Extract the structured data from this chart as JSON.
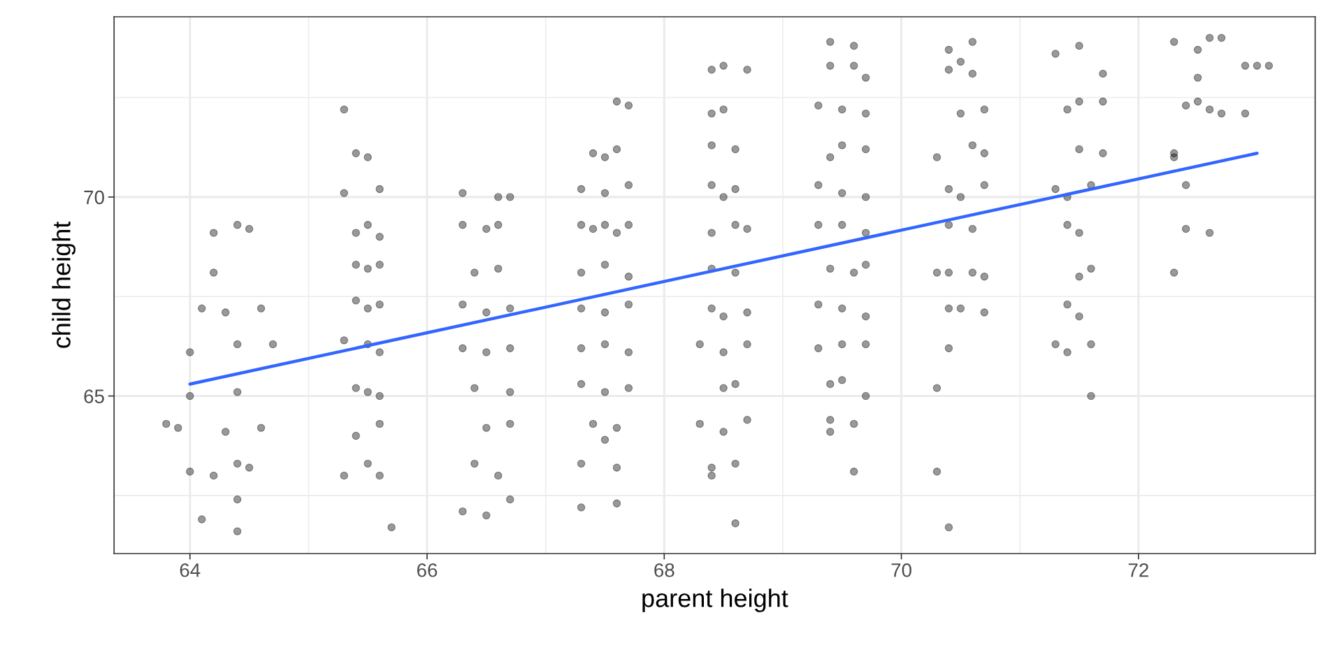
{
  "chart_data": {
    "type": "scatter",
    "xlabel": "parent height",
    "ylabel": "child height",
    "xlim": [
      63.36,
      73.49
    ],
    "ylim": [
      61.04,
      74.53
    ],
    "xticks": [
      64,
      66,
      68,
      70,
      72
    ],
    "yticks": [
      65,
      70
    ],
    "grid": true,
    "marker": "circle",
    "legend": false,
    "series": [
      {
        "color": "#000000",
        "x": [
          63.8,
          63.9,
          64.0,
          64.0,
          64.0,
          64.1,
          64.2,
          64.2,
          64.1,
          64.3,
          64.4,
          64.5,
          64.4,
          64.4,
          64.4,
          64.4,
          64.4,
          64.6,
          64.7,
          64.6,
          64.2,
          64.3,
          64.5,
          65.3,
          65.4,
          65.5,
          65.3,
          65.6,
          65.4,
          65.5,
          65.6,
          65.4,
          65.5,
          65.6,
          65.4,
          65.5,
          65.6,
          65.3,
          65.5,
          65.6,
          65.4,
          65.5,
          65.6,
          65.4,
          65.6,
          65.3,
          65.5,
          65.6,
          65.7,
          66.3,
          66.6,
          66.7,
          66.3,
          66.5,
          66.6,
          66.4,
          66.6,
          66.3,
          66.5,
          66.7,
          66.3,
          66.5,
          66.7,
          66.4,
          66.7,
          66.5,
          66.7,
          66.4,
          66.6,
          66.3,
          66.5,
          66.7,
          67.6,
          67.7,
          67.4,
          67.6,
          67.5,
          67.3,
          67.5,
          67.7,
          67.3,
          67.4,
          67.5,
          67.6,
          67.7,
          67.3,
          67.5,
          67.7,
          67.3,
          67.5,
          67.7,
          67.3,
          67.5,
          67.7,
          67.3,
          67.5,
          67.7,
          67.4,
          67.6,
          67.5,
          67.3,
          67.6,
          67.6,
          67.3,
          68.4,
          68.5,
          68.7,
          68.4,
          68.5,
          68.4,
          68.6,
          68.4,
          68.6,
          68.5,
          68.4,
          68.6,
          68.7,
          68.4,
          68.6,
          68.4,
          68.5,
          68.7,
          68.3,
          68.5,
          68.7,
          68.6,
          68.5,
          68.3,
          68.5,
          68.7,
          68.4,
          68.4,
          68.6,
          68.6,
          69.4,
          69.6,
          69.4,
          69.6,
          69.7,
          69.3,
          69.5,
          69.7,
          69.4,
          69.5,
          69.7,
          69.3,
          69.5,
          69.7,
          69.3,
          69.5,
          69.7,
          69.4,
          69.6,
          69.7,
          69.3,
          69.5,
          69.7,
          69.3,
          69.5,
          69.7,
          69.4,
          69.5,
          69.7,
          69.4,
          69.6,
          69.4,
          69.6,
          70.4,
          70.6,
          70.5,
          70.4,
          70.6,
          70.5,
          70.7,
          70.3,
          70.6,
          70.7,
          70.4,
          70.5,
          70.7,
          70.4,
          70.6,
          70.3,
          70.4,
          70.6,
          70.7,
          70.4,
          70.5,
          70.7,
          70.4,
          70.3,
          70.3,
          70.4,
          71.3,
          71.5,
          71.7,
          71.4,
          71.5,
          71.7,
          71.5,
          71.7,
          71.3,
          71.4,
          71.6,
          71.4,
          71.5,
          71.6,
          71.5,
          71.4,
          71.5,
          71.3,
          71.4,
          71.6,
          71.6,
          72.3,
          72.5,
          72.6,
          72.7,
          72.4,
          72.5,
          72.6,
          72.7,
          72.9,
          72.9,
          73.0,
          73.1,
          72.5,
          72.3,
          72.3,
          72.4,
          72.4,
          72.6,
          72.3
        ],
        "values": [
          64.3,
          64.2,
          65.0,
          66.1,
          63.1,
          61.9,
          69.1,
          68.1,
          67.2,
          67.1,
          69.3,
          69.2,
          66.3,
          65.1,
          63.3,
          61.6,
          62.4,
          67.2,
          66.3,
          64.2,
          63.0,
          64.1,
          63.2,
          72.2,
          71.1,
          71.0,
          70.1,
          70.2,
          69.1,
          69.3,
          69.0,
          68.3,
          68.2,
          68.3,
          67.4,
          67.2,
          67.3,
          66.4,
          66.3,
          66.1,
          65.2,
          65.1,
          65.0,
          64.0,
          64.3,
          63.0,
          63.3,
          63.0,
          61.7,
          70.1,
          70.0,
          70.0,
          69.3,
          69.2,
          69.3,
          68.1,
          68.2,
          67.3,
          67.1,
          67.2,
          66.2,
          66.1,
          66.2,
          65.2,
          65.1,
          64.2,
          64.3,
          63.3,
          63.0,
          62.1,
          62.0,
          62.4,
          72.4,
          72.3,
          71.1,
          71.2,
          71.0,
          70.2,
          70.1,
          70.3,
          69.3,
          69.2,
          69.3,
          69.1,
          69.3,
          68.1,
          68.3,
          68.0,
          67.2,
          67.1,
          67.3,
          66.2,
          66.3,
          66.1,
          65.3,
          65.1,
          65.2,
          64.3,
          64.2,
          63.9,
          63.3,
          63.2,
          62.3,
          62.2,
          73.2,
          73.3,
          73.2,
          72.1,
          72.2,
          71.3,
          71.2,
          70.3,
          70.2,
          70.0,
          69.1,
          69.3,
          69.2,
          68.2,
          68.1,
          67.2,
          67.0,
          67.1,
          66.3,
          66.1,
          66.3,
          65.3,
          65.2,
          64.3,
          64.1,
          64.4,
          63.2,
          63.0,
          63.3,
          61.8,
          73.9,
          73.8,
          73.3,
          73.3,
          73.0,
          72.3,
          72.2,
          72.1,
          71.0,
          71.3,
          71.2,
          70.3,
          70.1,
          70.0,
          69.3,
          69.3,
          69.1,
          68.2,
          68.1,
          68.3,
          67.3,
          67.2,
          67.0,
          66.2,
          66.3,
          66.3,
          65.3,
          65.4,
          65.0,
          64.4,
          64.3,
          64.1,
          63.1,
          73.7,
          73.9,
          73.4,
          73.2,
          73.1,
          72.1,
          72.2,
          71.0,
          71.3,
          71.1,
          70.2,
          70.0,
          70.3,
          69.3,
          69.2,
          68.1,
          68.1,
          68.1,
          68.0,
          67.2,
          67.2,
          67.1,
          66.2,
          65.2,
          63.1,
          61.7,
          73.6,
          73.8,
          73.1,
          72.2,
          72.4,
          72.4,
          71.2,
          71.1,
          70.2,
          70.0,
          70.3,
          69.3,
          69.1,
          68.2,
          68.0,
          67.3,
          67.0,
          66.3,
          66.1,
          66.3,
          65.0,
          73.9,
          73.7,
          74.0,
          74.0,
          72.3,
          72.4,
          72.2,
          72.1,
          72.1,
          73.3,
          73.3,
          73.3,
          73.0,
          71.1,
          71.0,
          70.3,
          69.2,
          69.1,
          68.1
        ]
      },
      {
        "type": "line",
        "color": "#3366ff",
        "x": [
          64,
          73
        ],
        "values": [
          65.3,
          71.1
        ],
        "marker": "none",
        "line_style": "solid"
      }
    ]
  }
}
